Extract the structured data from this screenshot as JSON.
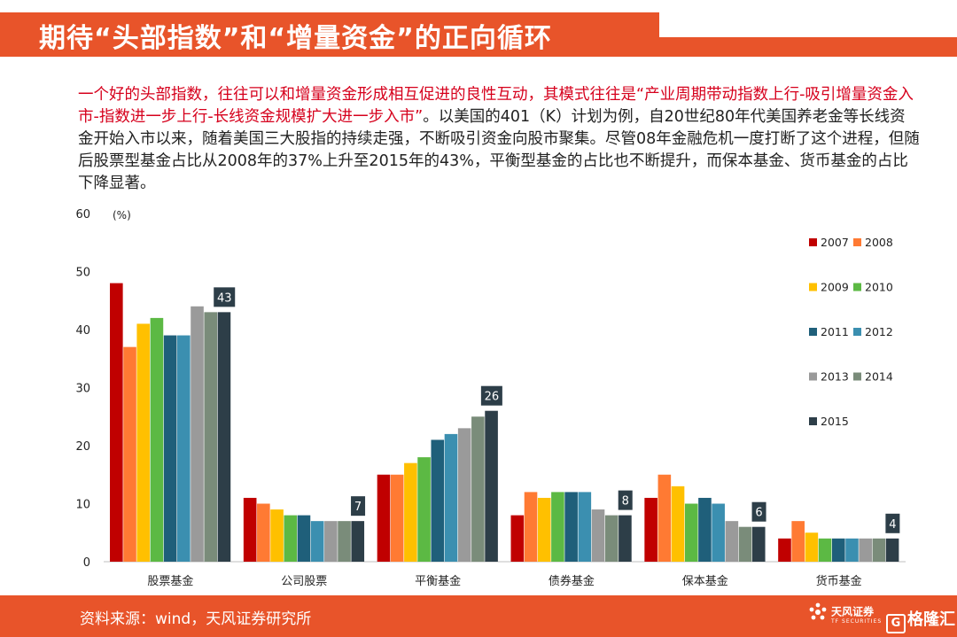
{
  "header": {
    "title": "期待“头部指数”和“增量资金”的正向循环"
  },
  "body": {
    "highlight": "一个好的头部指数，往往可以和增量资金形成相互促进的良性互动，其模式往往是“产业周期带动指数上行-吸引增量资金入市-指数进一步上行-长线资金规模扩大进一步入市”",
    "rest": "。以美国的401（K）计划为例，自20世纪80年代美国养老金等长线资金开始入市以来，随着美国三大股指的持续走强，不断吸引资金向股市聚集。尽管08年金融危机一度打断了这个进程，但随后股票型基金占比从2008年的37%上升至2015年的43%，平衡型基金的占比也不断提升，而保本基金、货币基金的占比下降显著。"
  },
  "chart_data": {
    "type": "bar",
    "unit_label": "(%)",
    "categories": [
      "股票基金",
      "公司股票",
      "平衡基金",
      "债券基金",
      "保本基金",
      "货币基金"
    ],
    "series": [
      {
        "name": "2007",
        "color": "#c00000",
        "values": [
          48,
          11,
          15,
          8,
          11,
          4
        ]
      },
      {
        "name": "2008",
        "color": "#ff7a33",
        "values": [
          37,
          10,
          15,
          12,
          15,
          7
        ]
      },
      {
        "name": "2009",
        "color": "#ffc000",
        "values": [
          41,
          9,
          17,
          11,
          13,
          5
        ]
      },
      {
        "name": "2010",
        "color": "#5cb944",
        "values": [
          42,
          8,
          18,
          12,
          10,
          4
        ]
      },
      {
        "name": "2011",
        "color": "#1f5f7a",
        "values": [
          39,
          8,
          21,
          12,
          11,
          4
        ]
      },
      {
        "name": "2012",
        "color": "#3b8fb0",
        "values": [
          39,
          7,
          22,
          12,
          10,
          4
        ]
      },
      {
        "name": "2013",
        "color": "#9a9a9a",
        "values": [
          44,
          7,
          23,
          9,
          7,
          4
        ]
      },
      {
        "name": "2014",
        "color": "#7a8c7a",
        "values": [
          43,
          7,
          25,
          8,
          6,
          4
        ]
      },
      {
        "name": "2015",
        "color": "#2d3e48",
        "values": [
          43,
          7,
          26,
          8,
          6,
          4
        ]
      }
    ],
    "data_labels": [
      {
        "category": "股票基金",
        "series": "2015",
        "text": "43"
      },
      {
        "category": "公司股票",
        "series": "2015",
        "text": "7"
      },
      {
        "category": "平衡基金",
        "series": "2015",
        "text": "26"
      },
      {
        "category": "债券基金",
        "series": "2015",
        "text": "8"
      },
      {
        "category": "保本基金",
        "series": "2015",
        "text": "6"
      },
      {
        "category": "货币基金",
        "series": "2015",
        "text": "4"
      }
    ],
    "ylim": [
      0,
      60
    ],
    "yticks": [
      0,
      10,
      20,
      30,
      40,
      50,
      60
    ],
    "grid": false,
    "legend": "right"
  },
  "footer": {
    "source": "资料来源：wind，天风证券研究所",
    "logo_text": "天风证券",
    "logo_sub": "TF SECURITIES",
    "brand": "格隆汇",
    "brand_mark": "G"
  },
  "colors": {
    "accent": "#e8542a",
    "highlight_text": "#d6001c"
  }
}
